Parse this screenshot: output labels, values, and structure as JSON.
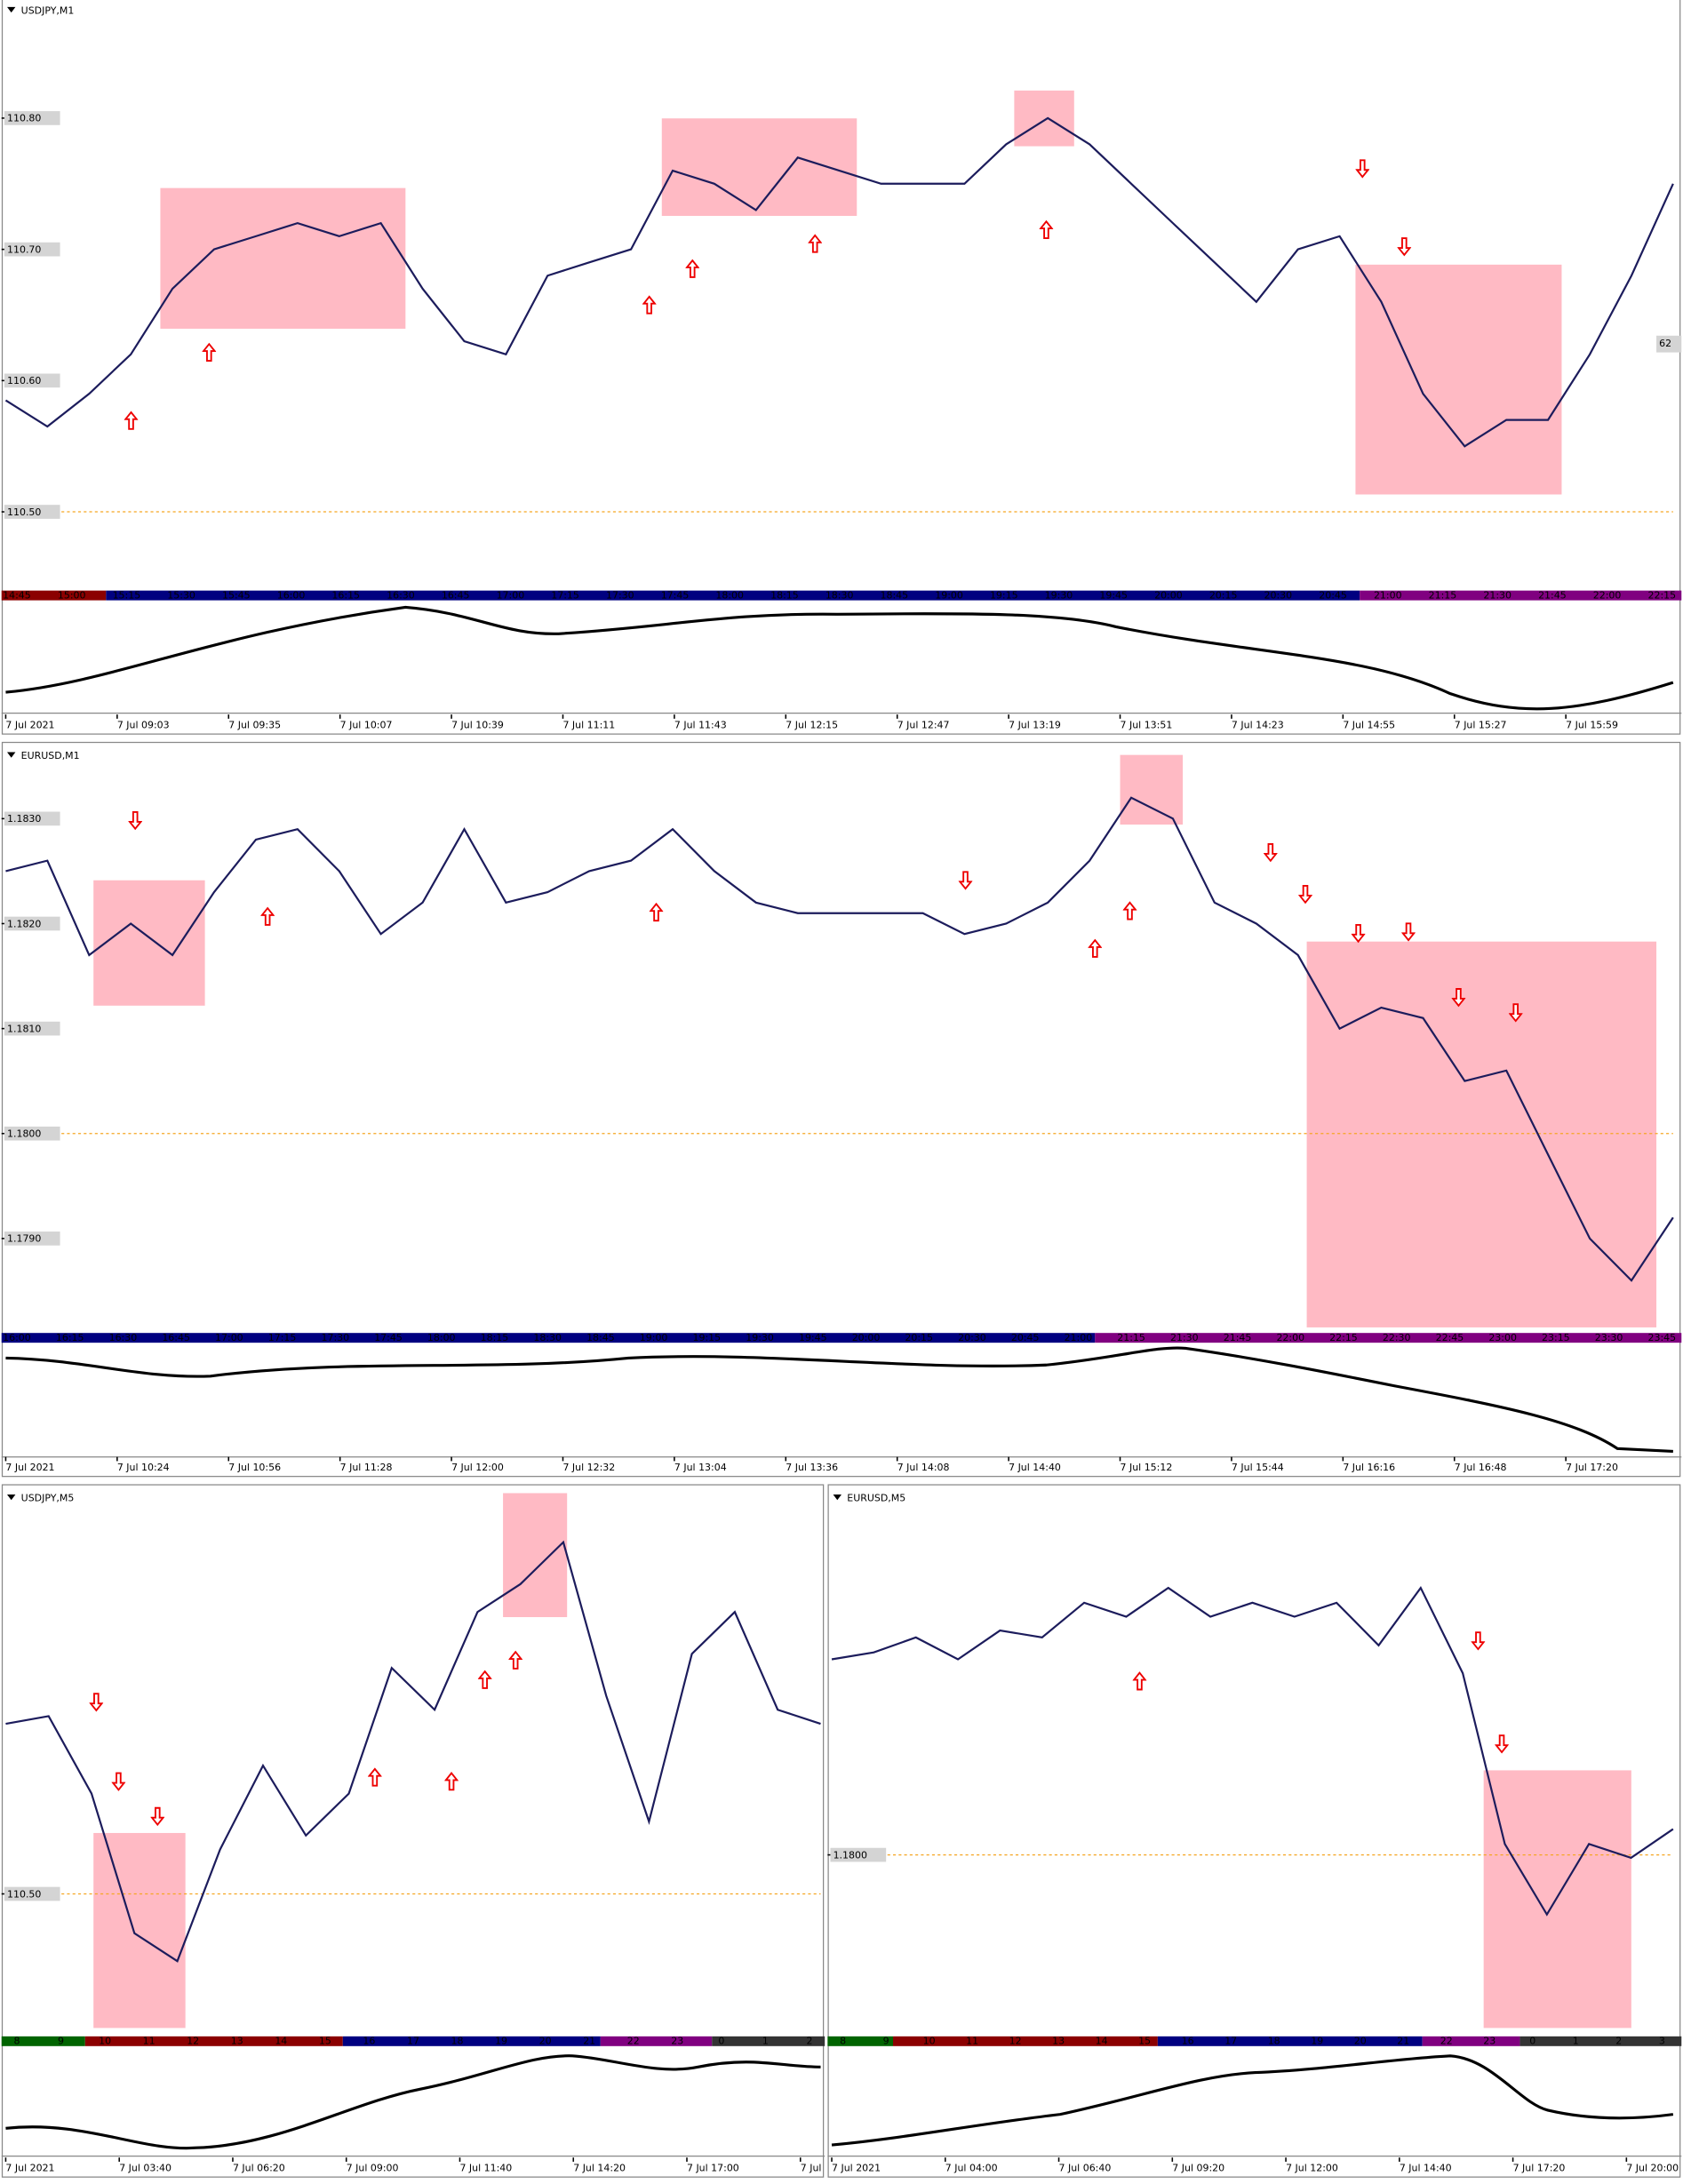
{
  "chart_data": [
    {
      "type": "line",
      "title": "USDJPY,M1",
      "color": "#1c1c5c",
      "values": [
        110.585,
        110.565,
        110.59,
        110.62,
        110.67,
        110.7,
        110.71,
        110.72,
        110.71,
        110.72,
        110.67,
        110.63,
        110.62,
        110.68,
        110.69,
        110.7,
        110.76,
        110.75,
        110.73,
        110.77,
        110.76,
        110.75,
        110.75,
        110.75,
        110.78,
        110.8,
        110.78,
        110.75,
        110.72,
        110.69,
        110.66,
        110.7,
        110.71,
        110.66,
        110.59,
        110.55,
        110.57,
        110.57,
        110.62,
        110.68,
        110.75
      ],
      "ylim": [
        110.44,
        110.89
      ],
      "yticks": [
        {
          "value": 110.8,
          "label": "110.80"
        },
        {
          "value": 110.7,
          "label": "110.70"
        },
        {
          "value": 110.6,
          "label": "110.60"
        },
        {
          "value": 110.5,
          "label": "110.50"
        }
      ],
      "level": 110.5,
      "level_color": "#f5a623",
      "right_label": "62",
      "x_labels": [
        "7 Jul 2021",
        "7 Jul 09:03",
        "7 Jul 09:35",
        "7 Jul 10:07",
        "7 Jul 10:39",
        "7 Jul 11:11",
        "7 Jul 11:43",
        "7 Jul 12:15",
        "7 Jul 12:47",
        "7 Jul 13:19",
        "7 Jul 13:51",
        "7 Jul 14:23",
        "7 Jul 14:55",
        "7 Jul 15:27",
        "7 Jul 15:59"
      ],
      "session_labels": [
        "14:45",
        "15:00",
        "15:15",
        "15:30",
        "15:45",
        "16:00",
        "16:15",
        "16:30",
        "16:45",
        "17:00",
        "17:15",
        "17:30",
        "17:45",
        "18:00",
        "18:15",
        "18:30",
        "18:45",
        "19:00",
        "19:15",
        "19:30",
        "19:45",
        "20:00",
        "20:15",
        "20:30",
        "20:45",
        "21:00",
        "21:15",
        "21:30",
        "21:45",
        "22:00",
        "22:15"
      ]
    },
    {
      "type": "line",
      "title": "EURUSD,M1",
      "color": "#1c1c5c",
      "values": [
        1.1825,
        1.1826,
        1.1817,
        1.182,
        1.1817,
        1.1823,
        1.1828,
        1.1829,
        1.1825,
        1.1819,
        1.1822,
        1.1829,
        1.1822,
        1.1823,
        1.1825,
        1.1826,
        1.1829,
        1.1825,
        1.1822,
        1.1821,
        1.1821,
        1.1821,
        1.1821,
        1.1819,
        1.182,
        1.1822,
        1.1826,
        1.1832,
        1.183,
        1.1822,
        1.182,
        1.1817,
        1.181,
        1.1812,
        1.1811,
        1.1805,
        1.1806,
        1.1798,
        1.179,
        1.1786,
        1.1792
      ],
      "ylim": [
        1.1781,
        1.1837
      ],
      "yticks": [
        {
          "value": 1.183,
          "label": "1.1830"
        },
        {
          "value": 1.182,
          "label": "1.1820"
        },
        {
          "value": 1.181,
          "label": "1.1810"
        },
        {
          "value": 1.18,
          "label": "1.1800"
        },
        {
          "value": 1.179,
          "label": "1.1790"
        }
      ],
      "level": 1.18,
      "level_color": "#f5a623",
      "x_labels": [
        "7 Jul 2021",
        "7 Jul 10:24",
        "7 Jul 10:56",
        "7 Jul 11:28",
        "7 Jul 12:00",
        "7 Jul 12:32",
        "7 Jul 13:04",
        "7 Jul 13:36",
        "7 Jul 14:08",
        "7 Jul 14:40",
        "7 Jul 15:12",
        "7 Jul 15:44",
        "7 Jul 16:16",
        "7 Jul 16:48",
        "7 Jul 17:20"
      ],
      "session_labels": [
        "16:00",
        "16:15",
        "16:30",
        "16:45",
        "17:00",
        "17:15",
        "17:30",
        "17:45",
        "18:00",
        "18:15",
        "18:30",
        "18:45",
        "19:00",
        "19:15",
        "19:30",
        "19:45",
        "20:00",
        "20:15",
        "20:30",
        "20:45",
        "21:00",
        "21:15",
        "21:30",
        "21:45",
        "22:00",
        "22:15",
        "22:30",
        "22:45",
        "23:00",
        "23:15",
        "23:30",
        "23:45"
      ]
    },
    {
      "type": "line",
      "title": "USDJPY,M5",
      "color": "#1c1c5c",
      "values": [
        110.634,
        110.64,
        110.579,
        110.469,
        110.447,
        110.535,
        110.601,
        110.546,
        110.579,
        110.678,
        110.645,
        110.722,
        110.744,
        110.777,
        110.656,
        110.557,
        110.689,
        110.722,
        110.645,
        110.634
      ],
      "ylim": [
        110.39,
        110.82
      ],
      "yticks": [
        {
          "value": 110.5,
          "label": "110.50"
        }
      ],
      "level": 110.5,
      "level_color": "#f5a623",
      "x_labels": [
        "7 Jul 2021",
        "7 Jul 03:40",
        "7 Jul 06:20",
        "7 Jul 09:00",
        "7 Jul 11:40",
        "7 Jul 14:20",
        "7 Jul 17:00",
        "7 Jul"
      ],
      "session_labels": [
        "8",
        "9",
        "10",
        "11",
        "12",
        "13",
        "14",
        "15",
        "16",
        "17",
        "18",
        "19",
        "20",
        "21",
        "22",
        "23",
        "0",
        "1",
        "2"
      ]
    },
    {
      "type": "line",
      "title": "EURUSD,M5",
      "color": "#1c1c5c",
      "values": [
        1.18197,
        1.18204,
        1.18219,
        1.18197,
        1.18226,
        1.18219,
        1.18254,
        1.1824,
        1.18269,
        1.1824,
        1.18254,
        1.1824,
        1.18254,
        1.18211,
        1.18269,
        1.18183,
        1.18011,
        1.1794,
        1.18011,
        1.17997,
        1.18026
      ],
      "ylim": [
        1.1782,
        1.1837
      ],
      "yticks": [
        {
          "value": 1.18,
          "label": "1.1800"
        }
      ],
      "level": 1.18,
      "level_color": "#f5a623",
      "x_labels": [
        "7 Jul 2021",
        "7 Jul 04:00",
        "7 Jul 06:40",
        "7 Jul 09:20",
        "7 Jul 12:00",
        "7 Jul 14:40",
        "7 Jul 17:20",
        "7 Jul 20:00"
      ],
      "session_labels": [
        "8",
        "9",
        "10",
        "11",
        "12",
        "13",
        "14",
        "15",
        "16",
        "17",
        "18",
        "19",
        "20",
        "21",
        "22",
        "23",
        "0",
        "1",
        "2",
        "3"
      ]
    }
  ]
}
